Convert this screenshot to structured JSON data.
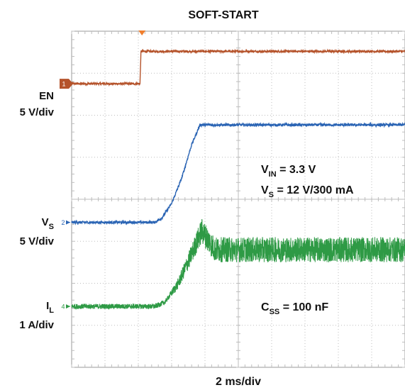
{
  "chart_data": {
    "type": "line",
    "title": "SOFT-START",
    "xlabel": "2 ms/div",
    "x_divisions": 10,
    "y_divisions": 8,
    "x_unit": "div",
    "colors": {
      "EN": "#b5532b",
      "VS": "#2a64b4",
      "IL": "#2e9a45",
      "trigger": "#f07f2e",
      "grid": "#bdbdbd",
      "frame": "#999999"
    },
    "series": [
      {
        "name": "EN",
        "label_line1": "EN",
        "label_line2": "5 V/div",
        "marker": "1",
        "marker_shape": "box",
        "points": [
          [
            0,
            2.75
          ],
          [
            2.05,
            2.75
          ],
          [
            2.08,
            3.52
          ],
          [
            10,
            3.52
          ]
        ],
        "noise": 0.025
      },
      {
        "name": "VS",
        "label_main": "V",
        "label_sub": "S",
        "label_line2": "5 V/div",
        "marker": "2",
        "marker_shape": "arrow",
        "points": [
          [
            0,
            -0.55
          ],
          [
            2.5,
            -0.55
          ],
          [
            2.7,
            -0.45
          ],
          [
            3.0,
            -0.1
          ],
          [
            3.3,
            0.5
          ],
          [
            3.6,
            1.3
          ],
          [
            3.85,
            1.77
          ],
          [
            10,
            1.77
          ]
        ],
        "noise": 0.03
      },
      {
        "name": "IL",
        "label_main": "I",
        "label_sub": "L",
        "label_line2": "1 A/div",
        "marker": "4",
        "marker_shape": "arrow",
        "points": [
          [
            0,
            -2.55
          ],
          [
            2.5,
            -2.55
          ],
          [
            2.8,
            -2.45
          ],
          [
            3.2,
            -2.0
          ],
          [
            3.6,
            -1.3
          ],
          [
            3.9,
            -0.75
          ],
          [
            4.3,
            -1.2
          ],
          [
            10,
            -1.2
          ]
        ],
        "noise_low": 0.06,
        "noise_high": 0.3
      }
    ],
    "annotations": [
      {
        "main": "V",
        "sub": "IN",
        "rest": " = 3.3 V"
      },
      {
        "main": "V",
        "sub": "S",
        "rest": " = 12 V/300 mA"
      },
      {
        "main": "C",
        "sub": "SS",
        "rest": " = 100 nF"
      }
    ]
  }
}
